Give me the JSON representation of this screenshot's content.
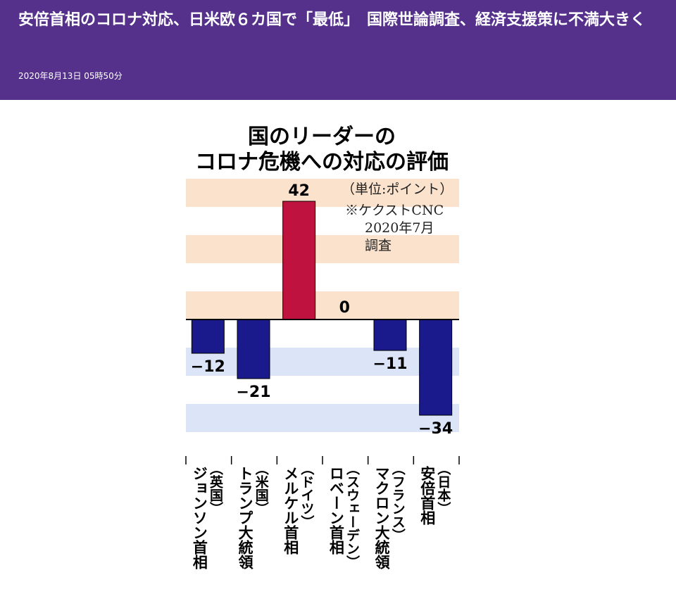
{
  "article": {
    "headline": "安倍首相のコロナ対応、日米欧６カ国で「最低」　国際世論調査、経済支援策に不満大きく",
    "timestamp": "2020年8月13日 05時50分"
  },
  "colors": {
    "header_bg": "#55318c",
    "band_positive": "#fbe2cc",
    "band_negative": "#dbe5f7",
    "bar_positive": "#c0123e",
    "bar_negative": "#1a1a8c"
  },
  "chart_data": {
    "type": "bar",
    "title": [
      "国のリーダーの",
      "コロナ危機への対応の評価"
    ],
    "unit_note": "（単位:ポイント）",
    "source_note": [
      "※ケクストCNC",
      "2020年7月",
      "調査"
    ],
    "categories": [
      {
        "country": "（英国）",
        "leader": "ジョンソン首相"
      },
      {
        "country": "（米国）",
        "leader": "トランプ大統領"
      },
      {
        "country": "（ドイツ）",
        "leader": "メルケル首相"
      },
      {
        "country": "（スウェーデン）",
        "leader": "ロベーン首相"
      },
      {
        "country": "（フランス）",
        "leader": "マクロン大統領"
      },
      {
        "country": "（日本）",
        "leader": "安倍首相"
      }
    ],
    "values": [
      -12,
      -21,
      42,
      0,
      -11,
      -34
    ],
    "value_labels": [
      "−12",
      "−21",
      "42",
      "0",
      "−11",
      "−34"
    ],
    "ylim": [
      -40,
      50
    ],
    "gridbands": true,
    "legend": "none"
  }
}
